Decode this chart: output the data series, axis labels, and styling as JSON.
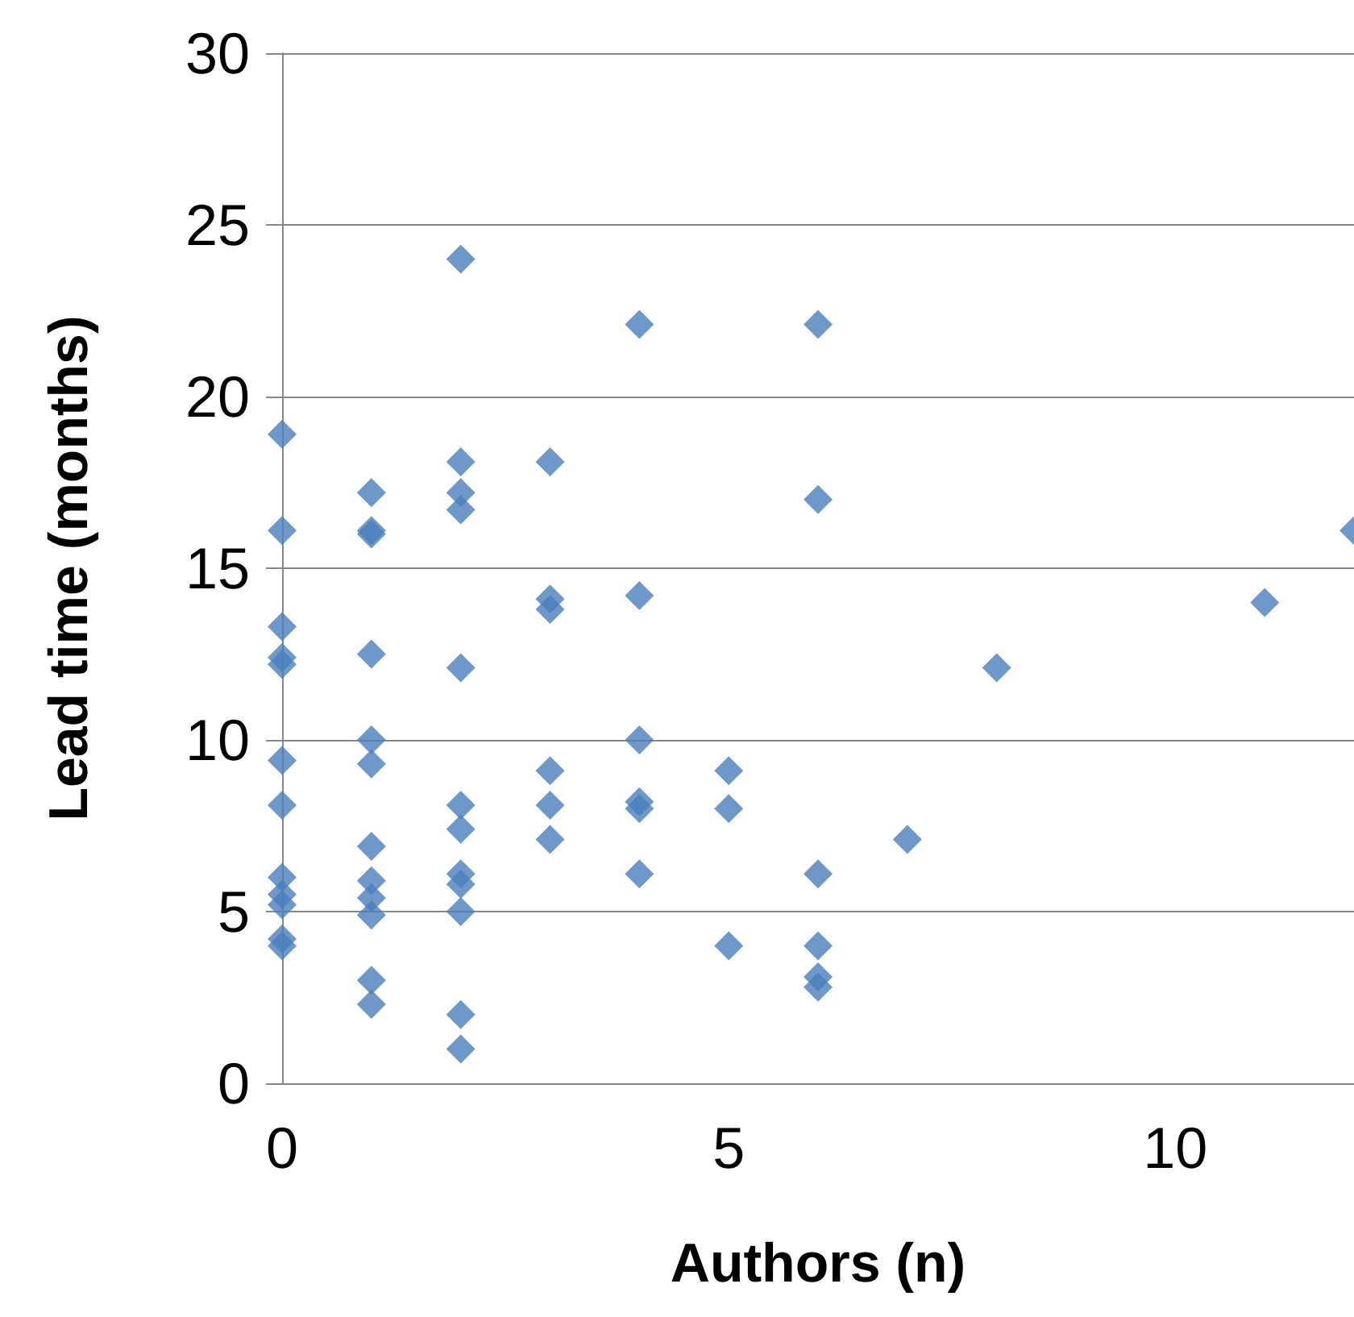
{
  "chart_data": {
    "type": "scatter",
    "xlabel": "Authors (n)",
    "ylabel": "Lead time (months)",
    "x": [
      0,
      0,
      0,
      0,
      0,
      0,
      0,
      0,
      0,
      0,
      0,
      0,
      1,
      1,
      1,
      1,
      1,
      1,
      1,
      1,
      1,
      1,
      1,
      1,
      2,
      2,
      2,
      2,
      2,
      2,
      2,
      2,
      2,
      2,
      2,
      2,
      3,
      3,
      3,
      3,
      3,
      3,
      4,
      4,
      4,
      4,
      4,
      4,
      5,
      5,
      5,
      6,
      6,
      6,
      6,
      6,
      6,
      7,
      8,
      11,
      12
    ],
    "values": [
      18.9,
      16.1,
      13.3,
      12.4,
      12.2,
      9.4,
      8.1,
      6,
      5.5,
      5.2,
      4.2,
      4,
      17.2,
      16.1,
      16,
      12.5,
      10,
      9.3,
      6.9,
      5.9,
      5.4,
      4.9,
      3,
      2.3,
      24,
      18.1,
      17.2,
      16.7,
      12.1,
      8.1,
      7.4,
      6.1,
      5.8,
      5,
      2,
      1,
      18.1,
      14.1,
      13.8,
      9.1,
      8.1,
      7.1,
      22.1,
      14.2,
      10,
      8.2,
      8,
      6.1,
      9.1,
      8,
      4,
      22.1,
      17,
      6.1,
      4,
      3.1,
      2.8,
      7.1,
      12.1,
      14,
      16.1
    ],
    "color": "#4a7ebb",
    "marker": "diamond",
    "xlim": [
      0,
      12
    ],
    "xticks": [
      0,
      5,
      10
    ],
    "ylim": [
      0,
      30
    ],
    "yticks": [
      0,
      5,
      10,
      15,
      20,
      25,
      30
    ],
    "grid": "y"
  }
}
